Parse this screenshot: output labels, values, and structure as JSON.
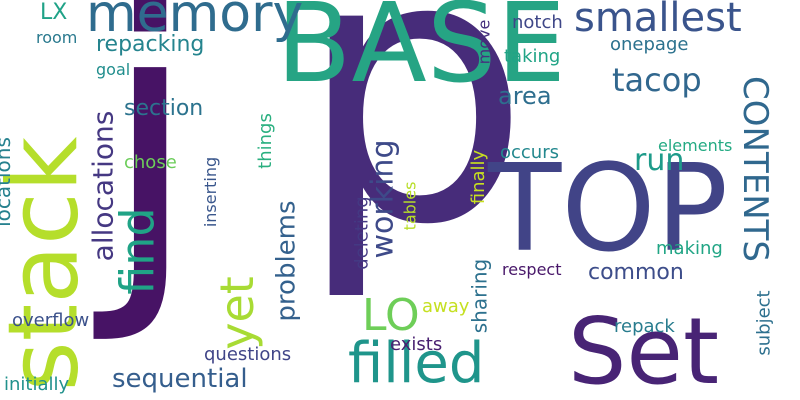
{
  "words": [
    {
      "text": "p",
      "color": "#472c7a"
    },
    {
      "text": "j",
      "color": "#471365"
    },
    {
      "text": "BASE",
      "color": "#26a484"
    },
    {
      "text": "TOP",
      "color": "#414487"
    },
    {
      "text": "Set",
      "color": "#482475"
    },
    {
      "text": "stack",
      "color": "#b5de2b"
    },
    {
      "text": "memory",
      "color": "#2f6c8e"
    },
    {
      "text": "smallest",
      "color": "#3a548c"
    },
    {
      "text": "filled",
      "color": "#1f958b"
    },
    {
      "text": "find",
      "color": "#20a386"
    },
    {
      "text": "yet",
      "color": "#a8db34"
    },
    {
      "text": "CONTENTS",
      "color": "#30688e"
    },
    {
      "text": "tacop",
      "color": "#31678e"
    },
    {
      "text": "working",
      "color": "#3e4a89"
    },
    {
      "text": "LO",
      "color": "#6ece58"
    },
    {
      "text": "allocations",
      "color": "#453882"
    },
    {
      "text": "problems",
      "color": "#34618d"
    },
    {
      "text": "sequential",
      "color": "#355e8d"
    },
    {
      "text": "repacking",
      "color": "#25848e"
    },
    {
      "text": "run",
      "color": "#1e9b8a"
    },
    {
      "text": "section",
      "color": "#2c738e"
    },
    {
      "text": "area",
      "color": "#2e6e8e"
    },
    {
      "text": "common",
      "color": "#3d4d8a"
    },
    {
      "text": "LX",
      "color": "#1fa287"
    },
    {
      "text": "locations",
      "color": "#26818e"
    },
    {
      "text": "sharing",
      "color": "#2d718e"
    },
    {
      "text": "subject",
      "color": "#2d708e"
    },
    {
      "text": "overflow",
      "color": "#3b518b"
    },
    {
      "text": "initially",
      "color": "#21918c"
    },
    {
      "text": "finally",
      "color": "#c8e020"
    },
    {
      "text": "notch",
      "color": "#3f4788"
    },
    {
      "text": "taking",
      "color": "#20a486"
    },
    {
      "text": "onepage",
      "color": "#2c728e"
    },
    {
      "text": "room",
      "color": "#29798e"
    },
    {
      "text": "goal",
      "color": "#218e8d"
    },
    {
      "text": "move",
      "color": "#46307e"
    },
    {
      "text": "chose",
      "color": "#6ccd5a"
    },
    {
      "text": "things",
      "color": "#29af7f"
    },
    {
      "text": "occurs",
      "color": "#23888e"
    },
    {
      "text": "elements",
      "color": "#24aa83"
    },
    {
      "text": "making",
      "color": "#21a585"
    },
    {
      "text": "deleting",
      "color": "#443983"
    },
    {
      "text": "inserting",
      "color": "#39568c"
    },
    {
      "text": "tables",
      "color": "#b8de29"
    },
    {
      "text": "respect",
      "color": "#481769"
    },
    {
      "text": "repack",
      "color": "#287c8e"
    },
    {
      "text": "away",
      "color": "#c5e021"
    },
    {
      "text": "exists",
      "color": "#481f70"
    },
    {
      "text": "questions",
      "color": "#404588"
    }
  ]
}
